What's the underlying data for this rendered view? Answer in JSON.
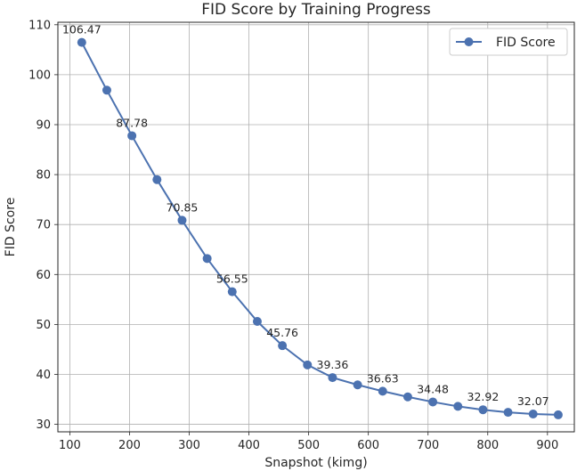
{
  "chart_data": {
    "type": "line",
    "title": "FID Score by Training Progress",
    "xlabel": "Snapshot (kimg)",
    "ylabel": "FID Score",
    "xlim": [
      80,
      945
    ],
    "ylim": [
      28.5,
      110.5
    ],
    "xticks": [
      100,
      200,
      300,
      400,
      500,
      600,
      700,
      800,
      900
    ],
    "yticks": [
      30,
      40,
      50,
      60,
      70,
      80,
      90,
      100,
      110
    ],
    "grid": true,
    "legend_position": "top-right",
    "series": [
      {
        "name": "FID Score",
        "color": "#4c72b0",
        "marker": "circle",
        "x": [
          120,
          162,
          204,
          246,
          288,
          330,
          372,
          414,
          456,
          498,
          540,
          582,
          624,
          666,
          708,
          750,
          792,
          834,
          876,
          918
        ],
        "y": [
          106.47,
          96.9,
          87.78,
          79.0,
          70.85,
          63.2,
          56.55,
          50.6,
          45.76,
          41.9,
          39.36,
          37.9,
          36.63,
          35.5,
          34.48,
          33.6,
          32.92,
          32.4,
          32.07,
          31.9
        ]
      }
    ],
    "data_labels": [
      {
        "x": 120,
        "y": 106.47,
        "text": "106.47"
      },
      {
        "x": 204,
        "y": 87.78,
        "text": "87.78"
      },
      {
        "x": 288,
        "y": 70.85,
        "text": "70.85"
      },
      {
        "x": 372,
        "y": 56.55,
        "text": "56.55"
      },
      {
        "x": 456,
        "y": 45.76,
        "text": "45.76"
      },
      {
        "x": 540,
        "y": 39.36,
        "text": "39.36"
      },
      {
        "x": 624,
        "y": 36.63,
        "text": "36.63"
      },
      {
        "x": 708,
        "y": 34.48,
        "text": "34.48"
      },
      {
        "x": 792,
        "y": 32.92,
        "text": "32.92"
      },
      {
        "x": 876,
        "y": 32.07,
        "text": "32.07"
      }
    ]
  }
}
